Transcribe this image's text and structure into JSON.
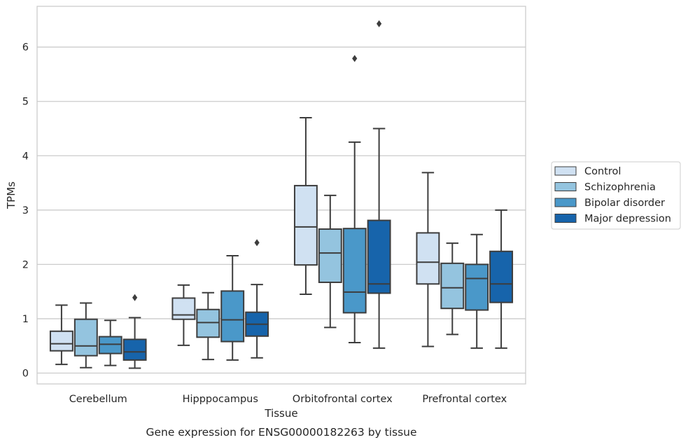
{
  "chart_data": {
    "type": "box",
    "caption": "Gene expression for ENSG00000182263 by tissue",
    "xlabel": "Tissue",
    "ylabel": "TPMs",
    "ylim": [
      -0.2,
      6.75
    ],
    "yticks": [
      0,
      1,
      2,
      3,
      4,
      5,
      6
    ],
    "ytick_labels": [
      "0",
      "1",
      "2",
      "3",
      "4",
      "5",
      "6"
    ],
    "grid": "horizontal",
    "legend_position": "right",
    "categories": [
      "Cerebellum",
      "Hipppocampus",
      "Orbitofrontal cortex",
      "Prefrontal cortex"
    ],
    "series": [
      {
        "name": "Control",
        "color": "#d0e1f2",
        "boxes": [
          {
            "whislo": 0.16,
            "q1": 0.41,
            "med": 0.54,
            "q3": 0.77,
            "whishi": 1.25,
            "fliers": []
          },
          {
            "whislo": 0.51,
            "q1": 0.99,
            "med": 1.07,
            "q3": 1.38,
            "whishi": 1.62,
            "fliers": []
          },
          {
            "whislo": 1.45,
            "q1": 1.99,
            "med": 2.69,
            "q3": 3.45,
            "whishi": 4.7,
            "fliers": []
          },
          {
            "whislo": 0.49,
            "q1": 1.64,
            "med": 2.04,
            "q3": 2.58,
            "whishi": 3.69,
            "fliers": []
          }
        ]
      },
      {
        "name": "Schizophrenia",
        "color": "#94c4df",
        "boxes": [
          {
            "whislo": 0.1,
            "q1": 0.32,
            "med": 0.5,
            "q3": 0.99,
            "whishi": 1.29,
            "fliers": []
          },
          {
            "whislo": 0.25,
            "q1": 0.66,
            "med": 0.93,
            "q3": 1.17,
            "whishi": 1.48,
            "fliers": []
          },
          {
            "whislo": 0.84,
            "q1": 1.67,
            "med": 2.21,
            "q3": 2.65,
            "whishi": 3.27,
            "fliers": []
          },
          {
            "whislo": 0.71,
            "q1": 1.19,
            "med": 1.57,
            "q3": 2.02,
            "whishi": 2.39,
            "fliers": []
          }
        ]
      },
      {
        "name": "Bipolar disorder",
        "color": "#4a98c9",
        "boxes": [
          {
            "whislo": 0.14,
            "q1": 0.36,
            "med": 0.53,
            "q3": 0.67,
            "whishi": 0.97,
            "fliers": []
          },
          {
            "whislo": 0.24,
            "q1": 0.58,
            "med": 0.98,
            "q3": 1.51,
            "whishi": 2.16,
            "fliers": []
          },
          {
            "whislo": 0.56,
            "q1": 1.11,
            "med": 1.49,
            "q3": 2.66,
            "whishi": 4.25,
            "fliers": [
              5.79
            ]
          },
          {
            "whislo": 0.46,
            "q1": 1.16,
            "med": 1.74,
            "q3": 2.0,
            "whishi": 2.55,
            "fliers": []
          }
        ]
      },
      {
        "name": "Major depression",
        "color": "#1764ab",
        "boxes": [
          {
            "whislo": 0.09,
            "q1": 0.24,
            "med": 0.39,
            "q3": 0.62,
            "whishi": 1.02,
            "fliers": [
              1.39
            ]
          },
          {
            "whislo": 0.28,
            "q1": 0.68,
            "med": 0.9,
            "q3": 1.12,
            "whishi": 1.63,
            "fliers": [
              2.4
            ]
          },
          {
            "whislo": 0.46,
            "q1": 1.47,
            "med": 1.64,
            "q3": 2.81,
            "whishi": 4.5,
            "fliers": [
              6.43
            ]
          },
          {
            "whislo": 0.46,
            "q1": 1.3,
            "med": 1.64,
            "q3": 2.24,
            "whishi": 3.0,
            "fliers": []
          }
        ]
      }
    ]
  }
}
